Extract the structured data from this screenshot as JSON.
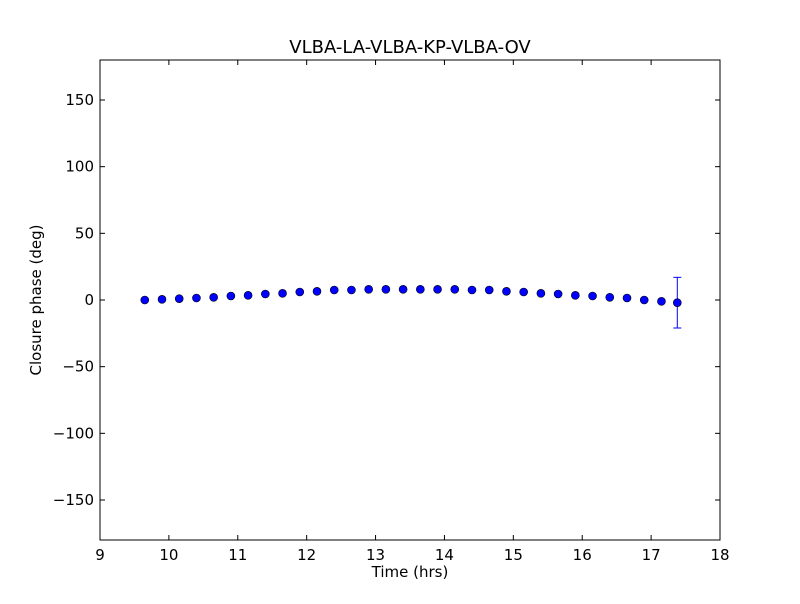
{
  "colors": {
    "background": "#ffffff",
    "marker_fill": "#0000ff",
    "marker_edge": "#000000",
    "errorbar": "#0000ff",
    "axes": "#000000"
  },
  "chart_data": {
    "type": "scatter",
    "title": "VLBA-LA-VLBA-KP-VLBA-OV",
    "xlabel": "Time (hrs)",
    "ylabel": "Closure phase (deg)",
    "xlim": [
      9,
      18
    ],
    "ylim": [
      -180,
      180
    ],
    "xticks": [
      9,
      10,
      11,
      12,
      13,
      14,
      15,
      16,
      17,
      18
    ],
    "xtick_labels": [
      "9",
      "10",
      "11",
      "12",
      "13",
      "14",
      "15",
      "16",
      "17",
      "18"
    ],
    "yticks": [
      150,
      100,
      50,
      0,
      -50,
      -100,
      -150
    ],
    "ytick_labels": [
      "150",
      "100",
      "50",
      "0",
      "−50",
      "−100",
      "−150"
    ],
    "grid": false,
    "marker": "circle",
    "x": [
      9.65,
      9.9,
      10.15,
      10.4,
      10.65,
      10.9,
      11.15,
      11.4,
      11.65,
      11.9,
      12.15,
      12.4,
      12.65,
      12.9,
      13.15,
      13.4,
      13.65,
      13.9,
      14.15,
      14.4,
      14.65,
      14.9,
      15.15,
      15.4,
      15.65,
      15.9,
      16.15,
      16.4,
      16.65,
      16.9,
      17.15,
      17.38
    ],
    "y": [
      0,
      0.5,
      1,
      1.5,
      2,
      3,
      3.5,
      4.5,
      5,
      6,
      6.5,
      7.5,
      7.5,
      8,
      8,
      8,
      8,
      8,
      8,
      7.5,
      7.5,
      6.5,
      6,
      5,
      4.5,
      3.5,
      3,
      2,
      1.5,
      0,
      -1,
      -2
    ],
    "yerr": [
      0,
      0,
      0,
      0,
      0,
      0,
      0,
      0,
      0,
      0,
      0,
      0,
      0,
      0,
      0,
      0,
      0,
      0,
      0,
      0,
      0,
      0,
      0,
      0,
      0,
      0,
      0,
      0,
      0,
      0,
      0,
      19
    ]
  }
}
